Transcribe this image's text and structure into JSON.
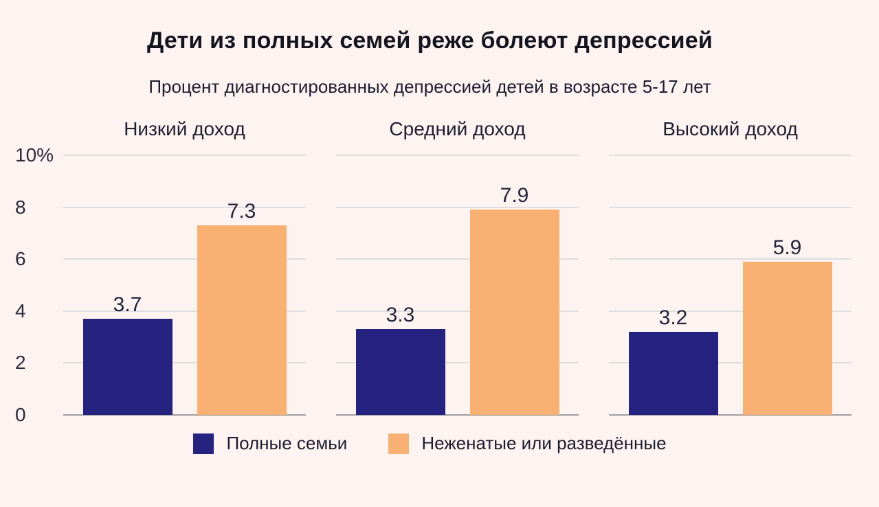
{
  "chart": {
    "title": "Дети из полных семей реже болеют депрессией",
    "subtitle": "Процент диагностированных депрессией детей в возрасте 5-17 лет"
  },
  "chart_data": {
    "type": "bar",
    "categories": [
      "Низкий доход",
      "Средний доход",
      "Высокий доход"
    ],
    "series": [
      {
        "name": "Полные семьи",
        "color": "#252280",
        "values": [
          3.7,
          3.3,
          3.2
        ]
      },
      {
        "name": "Неженатые или разведённые",
        "color": "#f9b173",
        "values": [
          7.3,
          7.9,
          5.9
        ]
      }
    ],
    "ylim": [
      0,
      10
    ],
    "yticks": [
      "10%",
      "8",
      "6",
      "4",
      "2",
      "0"
    ],
    "ytick_values": [
      10,
      8,
      6,
      4,
      2,
      0
    ],
    "grid": "horizontal",
    "legend_position": "bottom"
  },
  "colors": {
    "background": "#fdf4f2",
    "grid": "#dedede",
    "axis_line": "#9e9e9e",
    "title_text": "#14141f",
    "label_text": "#23233a"
  }
}
